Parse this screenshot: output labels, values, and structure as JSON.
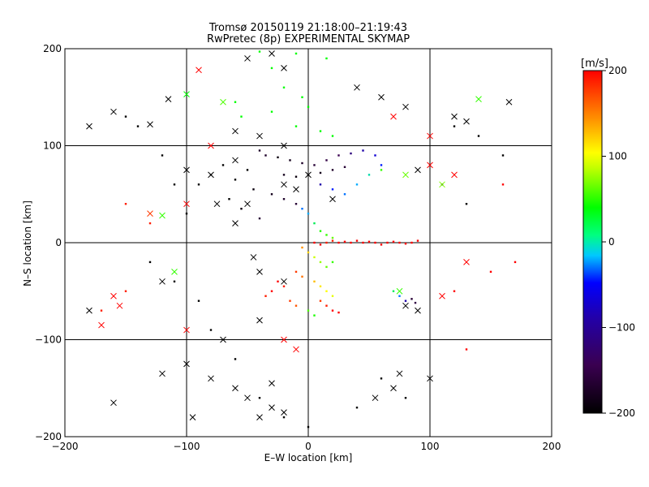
{
  "chart_data": {
    "type": "scatter",
    "title": "Tromsø 20150119 21:18:00–21:19:43",
    "subtitle": "RwPretec (8p) EXPERIMENTAL SKYMAP",
    "xlabel": "E–W location [km]",
    "ylabel": "N–S location [km]",
    "xlim": [
      -200,
      200
    ],
    "ylim": [
      -200,
      200
    ],
    "x_ticks": [
      -200,
      -100,
      0,
      100,
      200
    ],
    "y_ticks": [
      -200,
      -100,
      0,
      100,
      200
    ],
    "grid": true,
    "colorbar": {
      "label": "[m/s]",
      "range": [
        -200,
        200
      ],
      "ticks": [
        200,
        100,
        0,
        -100,
        -200
      ],
      "colors": [
        "#000000",
        "#3a0050",
        "#0000ff",
        "#00ffff",
        "#00ff00",
        "#ffff00",
        "#ff0000"
      ]
    },
    "series": [
      {
        "marker": "dot",
        "points": [
          [
            -40,
            197,
            0
          ],
          [
            -10,
            195,
            0
          ],
          [
            15,
            190,
            0
          ],
          [
            -30,
            180,
            0
          ],
          [
            -20,
            160,
            0
          ],
          [
            -5,
            150,
            0
          ],
          [
            0,
            140,
            0
          ],
          [
            -60,
            145,
            0
          ],
          [
            -55,
            130,
            0
          ],
          [
            -30,
            135,
            0
          ],
          [
            -10,
            120,
            0
          ],
          [
            10,
            115,
            0
          ],
          [
            20,
            110,
            0
          ],
          [
            -40,
            95,
            -170
          ],
          [
            -35,
            90,
            -170
          ],
          [
            -25,
            88,
            -190
          ],
          [
            -15,
            85,
            -180
          ],
          [
            -5,
            82,
            -170
          ],
          [
            5,
            80,
            -160
          ],
          [
            15,
            85,
            -150
          ],
          [
            25,
            90,
            -140
          ],
          [
            35,
            92,
            -130
          ],
          [
            45,
            95,
            -120
          ],
          [
            55,
            90,
            -110
          ],
          [
            60,
            80,
            -90
          ],
          [
            -20,
            70,
            -180
          ],
          [
            -10,
            68,
            -190
          ],
          [
            0,
            70,
            -190
          ],
          [
            10,
            72,
            -180
          ],
          [
            20,
            75,
            -170
          ],
          [
            30,
            78,
            -160
          ],
          [
            -50,
            75,
            -200
          ],
          [
            -60,
            65,
            -200
          ],
          [
            -45,
            55,
            -190
          ],
          [
            -30,
            50,
            -180
          ],
          [
            -20,
            45,
            -170
          ],
          [
            -10,
            40,
            -160
          ],
          [
            -70,
            80,
            -200
          ],
          [
            -80,
            70,
            -200
          ],
          [
            -90,
            60,
            -200
          ],
          [
            -65,
            45,
            -200
          ],
          [
            -55,
            35,
            -190
          ],
          [
            -40,
            25,
            -160
          ],
          [
            10,
            60,
            -120
          ],
          [
            20,
            55,
            -90
          ],
          [
            30,
            50,
            -60
          ],
          [
            40,
            60,
            -40
          ],
          [
            50,
            70,
            -20
          ],
          [
            60,
            75,
            20
          ],
          [
            -5,
            35,
            -60
          ],
          [
            0,
            30,
            -40
          ],
          [
            5,
            20,
            -10
          ],
          [
            10,
            12,
            10
          ],
          [
            15,
            8,
            20
          ],
          [
            20,
            5,
            40
          ],
          [
            5,
            0,
            200
          ],
          [
            10,
            -2,
            200
          ],
          [
            15,
            0,
            190
          ],
          [
            20,
            2,
            190
          ],
          [
            25,
            0,
            200
          ],
          [
            30,
            1,
            200
          ],
          [
            35,
            0,
            200
          ],
          [
            40,
            2,
            200
          ],
          [
            45,
            0,
            200
          ],
          [
            50,
            1,
            200
          ],
          [
            55,
            0,
            200
          ],
          [
            60,
            -2,
            200
          ],
          [
            65,
            0,
            200
          ],
          [
            70,
            1,
            200
          ],
          [
            75,
            0,
            200
          ],
          [
            80,
            -1,
            200
          ],
          [
            85,
            0,
            200
          ],
          [
            90,
            2,
            200
          ],
          [
            -5,
            -5,
            150
          ],
          [
            0,
            -10,
            120
          ],
          [
            5,
            -15,
            80
          ],
          [
            10,
            -20,
            60
          ],
          [
            15,
            -25,
            40
          ],
          [
            20,
            -20,
            20
          ],
          [
            -10,
            -30,
            180
          ],
          [
            -5,
            -35,
            160
          ],
          [
            5,
            -40,
            130
          ],
          [
            10,
            -45,
            110
          ],
          [
            15,
            -50,
            100
          ],
          [
            20,
            -55,
            90
          ],
          [
            -25,
            -40,
            200
          ],
          [
            -20,
            -45,
            190
          ],
          [
            -30,
            -50,
            200
          ],
          [
            -35,
            -55,
            190
          ],
          [
            -15,
            -60,
            180
          ],
          [
            -10,
            -65,
            170
          ],
          [
            0,
            -70,
            30
          ],
          [
            5,
            -75,
            10
          ],
          [
            10,
            -60,
            180
          ],
          [
            15,
            -65,
            190
          ],
          [
            20,
            -70,
            200
          ],
          [
            25,
            -72,
            200
          ],
          [
            70,
            -50,
            -10
          ],
          [
            75,
            -55,
            -60
          ],
          [
            80,
            -60,
            -120
          ],
          [
            85,
            -58,
            -160
          ],
          [
            88,
            -62,
            -150
          ],
          [
            -150,
            130,
            -200
          ],
          [
            -140,
            120,
            -200
          ],
          [
            -120,
            90,
            -200
          ],
          [
            -110,
            60,
            -200
          ],
          [
            -100,
            30,
            -200
          ],
          [
            -130,
            -20,
            -200
          ],
          [
            -110,
            -40,
            -200
          ],
          [
            -90,
            -60,
            -200
          ],
          [
            -80,
            -90,
            -200
          ],
          [
            -60,
            -120,
            -200
          ],
          [
            120,
            120,
            -200
          ],
          [
            140,
            110,
            -200
          ],
          [
            160,
            90,
            -200
          ],
          [
            110,
            60,
            -200
          ],
          [
            130,
            40,
            -200
          ],
          [
            -150,
            40,
            190
          ],
          [
            -130,
            20,
            190
          ],
          [
            -150,
            -50,
            190
          ],
          [
            -170,
            -70,
            190
          ],
          [
            130,
            -110,
            200
          ],
          [
            160,
            60,
            200
          ],
          [
            150,
            -30,
            200
          ],
          [
            120,
            -50,
            200
          ],
          [
            170,
            -20,
            200
          ],
          [
            -40,
            -160,
            -200
          ],
          [
            -20,
            -180,
            -200
          ],
          [
            0,
            -190,
            -200
          ],
          [
            40,
            -170,
            -200
          ],
          [
            80,
            -160,
            -200
          ],
          [
            60,
            -140,
            -200
          ]
        ]
      },
      {
        "marker": "x",
        "points": [
          [
            -160,
            135,
            -200
          ],
          [
            -180,
            120,
            -200
          ],
          [
            -130,
            122,
            -200
          ],
          [
            -115,
            148,
            -200
          ],
          [
            -100,
            153,
            0
          ],
          [
            -70,
            145,
            30
          ],
          [
            -90,
            178,
            200
          ],
          [
            -50,
            190,
            -200
          ],
          [
            -30,
            195,
            -200
          ],
          [
            -20,
            180,
            -200
          ],
          [
            -40,
            110,
            -200
          ],
          [
            -20,
            100,
            -200
          ],
          [
            -60,
            85,
            -200
          ],
          [
            -80,
            70,
            -200
          ],
          [
            -100,
            75,
            -200
          ],
          [
            -20,
            60,
            -200
          ],
          [
            -10,
            55,
            -200
          ],
          [
            0,
            70,
            -200
          ],
          [
            20,
            45,
            -200
          ],
          [
            -50,
            40,
            -200
          ],
          [
            -75,
            40,
            -200
          ],
          [
            -60,
            20,
            -200
          ],
          [
            -45,
            -15,
            -200
          ],
          [
            -40,
            -30,
            -200
          ],
          [
            -20,
            -40,
            -200
          ],
          [
            -130,
            30,
            180
          ],
          [
            -120,
            28,
            20
          ],
          [
            -100,
            40,
            200
          ],
          [
            -110,
            -30,
            20
          ],
          [
            -120,
            -40,
            -200
          ],
          [
            -160,
            -55,
            200
          ],
          [
            -170,
            -85,
            200
          ],
          [
            -155,
            -65,
            200
          ],
          [
            -180,
            -70,
            -200
          ],
          [
            -100,
            -90,
            200
          ],
          [
            -40,
            -80,
            -200
          ],
          [
            -20,
            -100,
            200
          ],
          [
            -70,
            -100,
            -200
          ],
          [
            -10,
            -110,
            200
          ],
          [
            -100,
            -125,
            -200
          ],
          [
            -80,
            -140,
            -200
          ],
          [
            -60,
            -150,
            -200
          ],
          [
            -50,
            -160,
            -200
          ],
          [
            -30,
            -170,
            -200
          ],
          [
            -30,
            -145,
            -200
          ],
          [
            -40,
            -180,
            -200
          ],
          [
            -20,
            -175,
            -200
          ],
          [
            -160,
            -165,
            -200
          ],
          [
            -120,
            -135,
            -200
          ],
          [
            -95,
            -180,
            -200
          ],
          [
            120,
            130,
            -200
          ],
          [
            130,
            125,
            -200
          ],
          [
            140,
            148,
            20
          ],
          [
            165,
            145,
            -200
          ],
          [
            110,
            60,
            50
          ],
          [
            100,
            110,
            200
          ],
          [
            80,
            140,
            -200
          ],
          [
            60,
            150,
            -200
          ],
          [
            40,
            160,
            -200
          ],
          [
            70,
            130,
            200
          ],
          [
            -80,
            100,
            200
          ],
          [
            -60,
            115,
            -200
          ],
          [
            90,
            75,
            -200
          ],
          [
            80,
            70,
            40
          ],
          [
            100,
            80,
            200
          ],
          [
            120,
            70,
            200
          ],
          [
            110,
            -55,
            200
          ],
          [
            130,
            -20,
            200
          ],
          [
            80,
            -65,
            -200
          ],
          [
            75,
            -50,
            20
          ],
          [
            90,
            -70,
            -200
          ],
          [
            100,
            -140,
            -200
          ],
          [
            75,
            -135,
            -200
          ],
          [
            55,
            -160,
            -200
          ],
          [
            70,
            -150,
            -200
          ]
        ]
      }
    ]
  }
}
